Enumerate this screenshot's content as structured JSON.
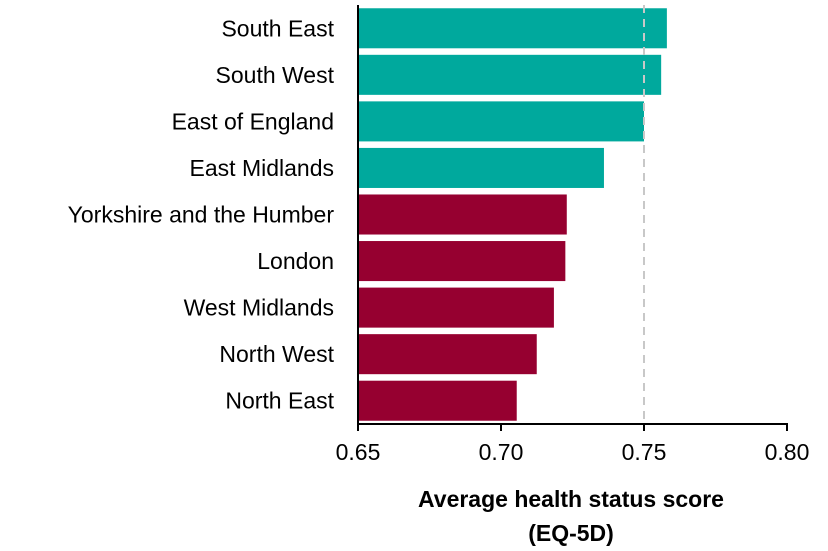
{
  "chart_data": {
    "type": "bar",
    "orientation": "horizontal",
    "categories": [
      "South East",
      "South West",
      "East of England",
      "East Midlands",
      "Yorkshire and the Humber",
      "London",
      "West Midlands",
      "North West",
      "North East"
    ],
    "values": [
      0.758,
      0.756,
      0.75,
      0.736,
      0.723,
      0.7225,
      0.7185,
      0.7125,
      0.7055
    ],
    "bar_colors": [
      "#00A99D",
      "#00A99D",
      "#00A99D",
      "#00A99D",
      "#960030",
      "#960030",
      "#960030",
      "#960030",
      "#960030"
    ],
    "xlabel_line1": "Average health status score",
    "xlabel_line2": "(EQ-5D)",
    "xlim": [
      0.65,
      0.8
    ],
    "xticks": [
      "0.65",
      "0.70",
      "0.75",
      "0.80"
    ],
    "reference_line": 0.75,
    "reference_line_style": "dashed",
    "grid": false
  }
}
